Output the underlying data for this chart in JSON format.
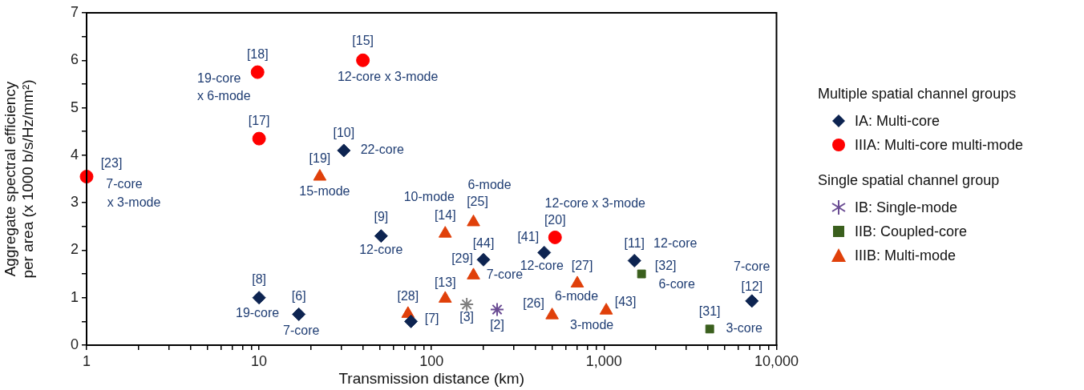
{
  "chart_data": {
    "type": "scatter",
    "xlabel": "Transmission distance (km)",
    "ylabel": "Aggregate spectral efficiency\nper area (x 1000 b/s/Hz/mm²)",
    "log": "x",
    "xlim": [
      1,
      10000
    ],
    "ylim": [
      0,
      7
    ],
    "xticks": [
      1,
      {
        "value": 2,
        "label": null
      },
      {
        "value": 3,
        "label": null
      },
      {
        "value": 4,
        "label": null
      },
      {
        "value": 5,
        "label": null
      },
      {
        "value": 6,
        "label": null
      },
      {
        "value": 7,
        "label": null
      },
      {
        "value": 8,
        "label": null
      },
      {
        "value": 9,
        "label": null
      },
      10,
      {
        "value": 20,
        "label": null
      },
      {
        "value": 30,
        "label": null
      },
      {
        "value": 40,
        "label": null
      },
      {
        "value": 50,
        "label": null
      },
      {
        "value": 60,
        "label": null
      },
      {
        "value": 70,
        "label": null
      },
      {
        "value": 80,
        "label": null
      },
      {
        "value": 90,
        "label": null
      },
      100,
      {
        "value": 200,
        "label": null
      },
      {
        "value": 300,
        "label": null
      },
      {
        "value": 400,
        "label": null
      },
      {
        "value": 500,
        "label": null
      },
      {
        "value": 600,
        "label": null
      },
      {
        "value": 700,
        "label": null
      },
      {
        "value": 800,
        "label": null
      },
      {
        "value": 900,
        "label": null
      },
      {
        "value": 1000,
        "label": "1,000"
      },
      {
        "value": 2000,
        "label": null
      },
      {
        "value": 3000,
        "label": null
      },
      {
        "value": 4000,
        "label": null
      },
      {
        "value": 5000,
        "label": null
      },
      {
        "value": 6000,
        "label": null
      },
      {
        "value": 7000,
        "label": null
      },
      {
        "value": 8000,
        "label": null
      },
      {
        "value": 9000,
        "label": null
      },
      {
        "value": 10000,
        "label": "10,000"
      }
    ],
    "yticks": [
      0,
      {
        "value": 0.5,
        "label": null
      },
      1,
      {
        "value": 1.5,
        "label": null
      },
      2,
      {
        "value": 2.5,
        "label": null
      },
      3,
      {
        "value": 3.5,
        "label": null
      },
      4,
      {
        "value": 4.5,
        "label": null
      },
      5,
      {
        "value": 5.5,
        "label": null
      },
      6,
      {
        "value": 6.5,
        "label": null
      },
      7
    ],
    "grid": false,
    "legend": "right",
    "series": [
      {
        "name": "IA: Multi-core",
        "color": "#0d2451",
        "marker": "diamond",
        "x": [
          10,
          17,
          76,
          51,
          31,
          200,
          450,
          1500,
          7200
        ],
        "values": [
          1,
          0.65,
          0.5,
          2.3,
          4.1,
          1.8,
          1.95,
          1.78,
          0.93
        ]
      },
      {
        "name": "IIIA: Multi-core multi-mode",
        "color": "#ff0000",
        "marker": "circle",
        "x": [
          1,
          9.8,
          10,
          40,
          520
        ],
        "values": [
          3.55,
          5.75,
          4.35,
          6,
          2.27
        ]
      },
      {
        "name": "IB: Single-mode",
        "color": "#6a4c93",
        "colors": [
          "#7f7f7f",
          "#6a4c93"
        ],
        "marker": "cross",
        "x": [
          160,
          240
        ],
        "values": [
          0.86,
          0.75
        ]
      },
      {
        "name": "IIB: Coupled-core",
        "color": "#3a5f1d",
        "marker": "square",
        "x": [
          1650,
          4100
        ],
        "values": [
          1.5,
          0.34
        ]
      },
      {
        "name": "IIIB: Multi-mode",
        "color": "#e0400a",
        "marker": "triangle",
        "x": [
          22.5,
          73,
          120,
          120,
          175,
          175,
          500,
          700,
          1030
        ],
        "values": [
          3.55,
          0.66,
          0.98,
          2.35,
          2.59,
          1.47,
          0.63,
          1.3,
          0.73
        ]
      }
    ],
    "annotations": [
      {
        "text": "[23]",
        "x": 1,
        "y": 3.55
      },
      {
        "text": "7-core",
        "x": 1,
        "y": 3.55
      },
      {
        "text": "x 3-mode",
        "x": 1,
        "y": 3.55
      },
      {
        "text": "[18]",
        "x": 9.8,
        "y": 5.75
      },
      {
        "text": "19-core",
        "x": 9.8,
        "y": 5.75
      },
      {
        "text": "x 6-mode",
        "x": 9.8,
        "y": 5.75
      },
      {
        "text": "[15]",
        "x": 40,
        "y": 6
      },
      {
        "text": "12-core x 3-mode",
        "x": 40,
        "y": 6
      },
      {
        "text": "[17]",
        "x": 10,
        "y": 4.35
      },
      {
        "text": "[10]",
        "x": 31,
        "y": 4.1
      },
      {
        "text": "22-core",
        "x": 31,
        "y": 4.1
      },
      {
        "text": "[19]",
        "x": 22.5,
        "y": 3.55
      },
      {
        "text": "15-mode",
        "x": 22.5,
        "y": 3.55
      },
      {
        "text": "[9]",
        "x": 51,
        "y": 2.3
      },
      {
        "text": "12-core",
        "x": 51,
        "y": 2.3
      },
      {
        "text": "[8]",
        "x": 10,
        "y": 1
      },
      {
        "text": "19-core",
        "x": 10,
        "y": 1
      },
      {
        "text": "[6]",
        "x": 17,
        "y": 0.65
      },
      {
        "text": "7-core",
        "x": 17,
        "y": 0.65
      },
      {
        "text": "[7]",
        "x": 76,
        "y": 0.5
      },
      {
        "text": "[28]",
        "x": 73,
        "y": 0.66
      },
      {
        "text": "[13]",
        "x": 120,
        "y": 0.98
      },
      {
        "text": "[3]",
        "x": 160,
        "y": 0.86
      },
      {
        "text": "[2]",
        "x": 240,
        "y": 0.75
      },
      {
        "text": "[14]",
        "x": 120,
        "y": 2.35
      },
      {
        "text": "10-mode",
        "x": 120,
        "y": 2.35
      },
      {
        "text": "[25]",
        "x": 175,
        "y": 2.59
      },
      {
        "text": "6-mode",
        "x": 175,
        "y": 2.59
      },
      {
        "text": "[44]",
        "x": 200,
        "y": 1.8
      },
      {
        "text": "[29]",
        "x": 175,
        "y": 1.47
      },
      {
        "text": "7-core",
        "x": 175,
        "y": 1.47
      },
      {
        "text": "[41]",
        "x": 450,
        "y": 1.95
      },
      {
        "text": "12-core",
        "x": 450,
        "y": 1.95
      },
      {
        "text": "[20]",
        "x": 520,
        "y": 2.27
      },
      {
        "text": "12-core x 3-mode",
        "x": 520,
        "y": 2.27
      },
      {
        "text": "[27]",
        "x": 700,
        "y": 1.3
      },
      {
        "text": "6-mode",
        "x": 700,
        "y": 1.3
      },
      {
        "text": "[26]",
        "x": 500,
        "y": 0.63
      },
      {
        "text": "[43]",
        "x": 1030,
        "y": 0.73
      },
      {
        "text": "3-mode",
        "x": 1030,
        "y": 0.73
      },
      {
        "text": "[11]",
        "x": 1500,
        "y": 1.78
      },
      {
        "text": "12-core",
        "x": 1500,
        "y": 1.78
      },
      {
        "text": "[32]",
        "x": 1650,
        "y": 1.5
      },
      {
        "text": "6-core",
        "x": 1650,
        "y": 1.5
      },
      {
        "text": "[12]",
        "x": 7200,
        "y": 0.93
      },
      {
        "text": "7-core",
        "x": 7200,
        "y": 0.93
      },
      {
        "text": "[31]",
        "x": 4100,
        "y": 0.34
      },
      {
        "text": "3-core",
        "x": 4100,
        "y": 0.34
      },
      "Multiple spatial channel groups",
      "Single spatial channel group"
    ]
  }
}
